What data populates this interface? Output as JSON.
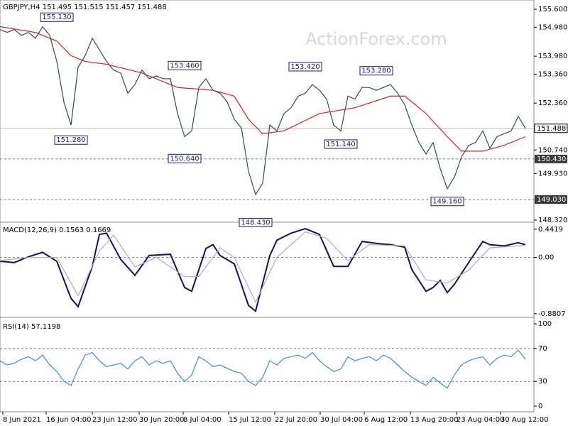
{
  "chart_data": [
    {
      "type": "line",
      "title": "GBPJPY,H4  151.495 151.515 151.457 151.488",
      "watermark": "ActionForex.com",
      "ylim": [
        148.27,
        155.92
      ],
      "yticks": [
        {
          "value": 155.6,
          "label": "155.600"
        },
        {
          "value": 154.98,
          "label": "154.980"
        },
        {
          "value": 153.98,
          "label": "153.980"
        },
        {
          "value": 153.36,
          "label": "153.360"
        },
        {
          "value": 152.36,
          "label": "152.360"
        },
        {
          "value": 150.74,
          "label": "150.740"
        },
        {
          "value": 149.93,
          "label": "149.930"
        },
        {
          "value": 148.32,
          "label": "148.320"
        }
      ],
      "levels": [
        {
          "value": 150.43,
          "label": "150.430"
        },
        {
          "value": 149.03,
          "label": "149.030"
        }
      ],
      "last": {
        "value": 151.488,
        "label": "151.488"
      },
      "annotations": [
        {
          "x": 8,
          "value": 155.13,
          "label": "155.130",
          "side": "high"
        },
        {
          "x": 10,
          "value": 151.28,
          "label": "151.280",
          "side": "low"
        },
        {
          "x": 26,
          "value": 153.46,
          "label": "153.460",
          "side": "high"
        },
        {
          "x": 26,
          "value": 150.64,
          "label": "150.640",
          "side": "low"
        },
        {
          "x": 36,
          "value": 148.43,
          "label": "148.430",
          "side": "low"
        },
        {
          "x": 43,
          "value": 153.42,
          "label": "153.420",
          "side": "high"
        },
        {
          "x": 48,
          "value": 151.14,
          "label": "151.140",
          "side": "low"
        },
        {
          "x": 53,
          "value": 153.28,
          "label": "153.280",
          "side": "high"
        },
        {
          "x": 63,
          "value": 149.16,
          "label": "149.160",
          "side": "low"
        }
      ],
      "series": [
        {
          "name": "GBPJPY",
          "color": "#2f4f4f",
          "x": [
            0,
            1,
            2,
            3,
            4,
            5,
            6,
            7,
            8,
            9,
            10,
            11,
            12,
            13,
            14,
            15,
            16,
            17,
            18,
            19,
            20,
            21,
            22,
            23,
            24,
            25,
            26,
            27,
            28,
            29,
            30,
            31,
            32,
            33,
            34,
            35,
            36,
            37,
            38,
            39,
            40,
            41,
            42,
            43,
            44,
            45,
            46,
            47,
            48,
            49,
            50,
            51,
            52,
            53,
            54,
            55,
            56,
            57,
            58,
            59,
            60,
            61,
            62,
            63,
            64,
            65,
            66,
            67,
            68,
            69,
            70,
            71,
            72,
            73,
            74
          ],
          "values": [
            154.9,
            154.8,
            154.9,
            154.7,
            154.8,
            154.6,
            155.0,
            154.7,
            153.8,
            152.4,
            151.6,
            153.6,
            154.0,
            154.6,
            154.2,
            153.8,
            153.5,
            153.4,
            152.7,
            153.0,
            153.5,
            153.2,
            153.3,
            153.2,
            153.2,
            152.0,
            151.2,
            151.4,
            152.9,
            153.2,
            152.8,
            152.7,
            152.4,
            151.8,
            151.5,
            150.0,
            149.2,
            149.6,
            151.6,
            151.4,
            152.0,
            152.2,
            152.6,
            152.7,
            153.0,
            152.8,
            152.5,
            151.6,
            151.4,
            152.6,
            152.5,
            152.9,
            152.9,
            152.8,
            152.9,
            153.0,
            152.7,
            152.3,
            151.6,
            151.0,
            150.6,
            151.0,
            150.1,
            149.4,
            149.8,
            150.5,
            150.9,
            151.0,
            151.4,
            150.8,
            151.2,
            151.3,
            151.4,
            151.9,
            151.488
          ]
        },
        {
          "name": "MA",
          "color": "#d42020",
          "x": [
            0,
            5,
            8,
            10,
            12,
            15,
            20,
            25,
            30,
            33,
            35,
            37,
            40,
            45,
            50,
            55,
            57,
            60,
            63,
            65,
            68,
            71,
            74
          ],
          "values": [
            155.0,
            154.8,
            154.5,
            154.0,
            153.8,
            153.7,
            153.4,
            152.9,
            152.8,
            152.6,
            151.8,
            151.3,
            151.4,
            152.0,
            152.2,
            152.6,
            152.6,
            152.0,
            151.2,
            150.7,
            150.7,
            150.9,
            151.2
          ]
        }
      ]
    },
    {
      "type": "line",
      "title": "MACD(12,26,9) 0.1563 0.1669",
      "ylim": [
        -0.905,
        0.54
      ],
      "yticks": [
        0.4419,
        {
          "value": 0,
          "label": "0.00"
        },
        -0.8807
      ],
      "levels": [
        0
      ],
      "series": [
        {
          "name": "MACD",
          "color": "#10106e",
          "x": [
            0,
            2,
            4,
            6,
            8,
            10,
            11,
            13,
            14,
            15,
            17,
            19,
            21,
            24,
            26,
            27,
            29,
            30,
            31,
            33,
            35,
            36,
            38,
            39,
            41,
            43,
            45,
            47,
            49,
            51,
            53,
            55,
            57,
            58,
            60,
            61,
            62,
            63,
            64,
            66,
            68,
            69,
            71,
            73,
            74
          ],
          "values": [
            -0.06,
            -0.08,
            0.01,
            0.08,
            -0.06,
            -0.64,
            -0.77,
            -0.14,
            0.36,
            0.38,
            -0.03,
            -0.28,
            0.03,
            0.05,
            -0.47,
            -0.53,
            0.14,
            0.2,
            0.03,
            -0.1,
            -0.75,
            -0.84,
            0.03,
            0.27,
            0.38,
            0.45,
            0.36,
            -0.14,
            -0.14,
            0.25,
            0.22,
            0.2,
            0.16,
            -0.19,
            -0.53,
            -0.47,
            -0.36,
            -0.55,
            -0.42,
            -0.08,
            0.25,
            0.2,
            0.18,
            0.23,
            0.2
          ]
        },
        {
          "name": "Signal",
          "color": "#c0a8a8",
          "x": [
            0,
            4,
            8,
            11,
            14,
            16,
            19,
            22,
            26,
            28,
            31,
            33,
            36,
            39,
            43,
            46,
            49,
            52,
            57,
            60,
            63,
            66,
            69,
            74
          ],
          "values": [
            -0.05,
            0,
            0,
            -0.6,
            0.1,
            0.35,
            -0.15,
            0,
            -0.3,
            -0.3,
            0.15,
            0,
            -0.7,
            0,
            0.4,
            0.3,
            -0.05,
            0.2,
            0.18,
            -0.35,
            -0.4,
            -0.2,
            0.15,
            0.19
          ]
        }
      ]
    },
    {
      "type": "line",
      "title": "RSI(14) 57.1198",
      "ylim": [
        -6.9,
        105.2
      ],
      "yticks": [
        100,
        70,
        30,
        0
      ],
      "levels": [
        70,
        30
      ],
      "xlim": [
        0,
        75.2
      ],
      "xticks": [
        {
          "value": 0.4,
          "label": "8 Jun 2021"
        },
        {
          "value": 6.5,
          "label": "16 Jun 04:00"
        },
        {
          "value": 13,
          "label": "23 Jun 12:00"
        },
        {
          "value": 19.6,
          "label": "30 Jun 20:00"
        },
        {
          "value": 25.8,
          "label": "8 Jul 04:00"
        },
        {
          "value": 32.2,
          "label": "15 Jul 12:00"
        },
        {
          "value": 38.7,
          "label": "22 Jul 20:00"
        },
        {
          "value": 45.1,
          "label": "30 Jul 04:00"
        },
        {
          "value": 51.3,
          "label": "6 Aug 12:00"
        },
        {
          "value": 57.8,
          "label": "13 Aug 20:00"
        },
        {
          "value": 64.3,
          "label": "23 Aug 04:00"
        },
        {
          "value": 70.5,
          "label": "30 Aug 12:00"
        }
      ],
      "series": [
        {
          "name": "RSI",
          "color": "#3d8fd1",
          "x": [
            0,
            1,
            2,
            3,
            4,
            5,
            6,
            7,
            8,
            9,
            10,
            11,
            12,
            13,
            14,
            15,
            16,
            17,
            18,
            19,
            20,
            21,
            22,
            23,
            24,
            25,
            26,
            27,
            28,
            29,
            30,
            31,
            32,
            33,
            34,
            35,
            36,
            37,
            38,
            39,
            40,
            41,
            42,
            43,
            44,
            45,
            46,
            47,
            48,
            49,
            50,
            51,
            52,
            53,
            54,
            55,
            56,
            57,
            58,
            59,
            60,
            61,
            62,
            63,
            64,
            65,
            66,
            67,
            68,
            69,
            70,
            71,
            72,
            73,
            74
          ],
          "values": [
            55,
            50,
            52,
            57,
            60,
            55,
            62,
            50,
            42,
            30,
            25,
            45,
            62,
            65,
            55,
            48,
            50,
            52,
            45,
            55,
            60,
            50,
            55,
            52,
            55,
            40,
            30,
            38,
            60,
            55,
            48,
            50,
            46,
            42,
            40,
            30,
            25,
            35,
            55,
            50,
            58,
            60,
            62,
            58,
            65,
            55,
            48,
            42,
            45,
            60,
            55,
            58,
            60,
            55,
            62,
            58,
            50,
            42,
            35,
            30,
            25,
            35,
            28,
            22,
            38,
            50,
            55,
            58,
            60,
            50,
            58,
            62,
            60,
            68,
            57.1198
          ]
        }
      ]
    }
  ]
}
